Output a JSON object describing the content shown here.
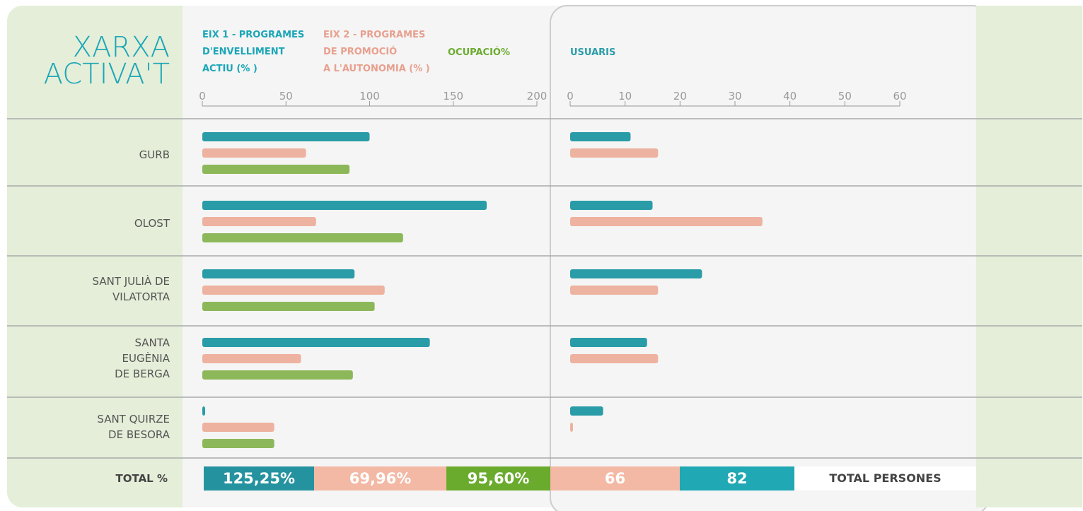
{
  "chart_data": {
    "type": "bar",
    "orientation": "horizontal",
    "title": "XARXA\nACTIVA'T",
    "categories": [
      "GURB",
      "OLOST",
      "SANT JULIÀ DE\nVILATORTA",
      "SANTA\nEUGÈNIA\nDE BERGA",
      "SANT QUIRZE\nDE BESORA"
    ],
    "panels": [
      {
        "xlim": [
          0,
          200
        ],
        "xticks": [
          0,
          50,
          100,
          150,
          200
        ],
        "series": [
          {
            "name": "EIX 1 - PROGRAMES\nD'ENVELLIMENT\nACTIU (% )",
            "color": "#2a9ca8",
            "values": [
              100,
              170,
              91,
              136,
              1
            ]
          },
          {
            "name": "EIX 2 - PROGRAMES\nDE PROMOCIÓ\nA L'AUTONOMIA (% )",
            "color": "#eeb2a0",
            "values": [
              62,
              68,
              109,
              59,
              43
            ]
          },
          {
            "name": "OCUPACIÓ%",
            "color": "#8cb85a",
            "values": [
              88,
              120,
              103,
              90,
              43
            ]
          }
        ]
      },
      {
        "xlim": [
          0,
          60
        ],
        "xticks": [
          0,
          10,
          20,
          30,
          40,
          50,
          60
        ],
        "xlabel": "USUARIS",
        "series": [
          {
            "color": "#2a9ca8",
            "values": [
              11,
              15,
              24,
              14,
              6
            ]
          },
          {
            "color": "#eeb2a0",
            "values": [
              16,
              35,
              16,
              16,
              0
            ]
          }
        ]
      }
    ],
    "totals": {
      "label": "TOTAL %",
      "items": [
        {
          "text": "125,25%",
          "color": "#25939f"
        },
        {
          "text": "69,96%",
          "color": "#f3b9a5"
        },
        {
          "text": "95,60%",
          "color": "#6aab2e"
        },
        {
          "text": "66",
          "color": "#f3b9a5"
        },
        {
          "text": "82",
          "color": "#20a8b4"
        },
        {
          "text": "TOTAL PERSONES",
          "color": "#ffffff"
        }
      ]
    }
  }
}
